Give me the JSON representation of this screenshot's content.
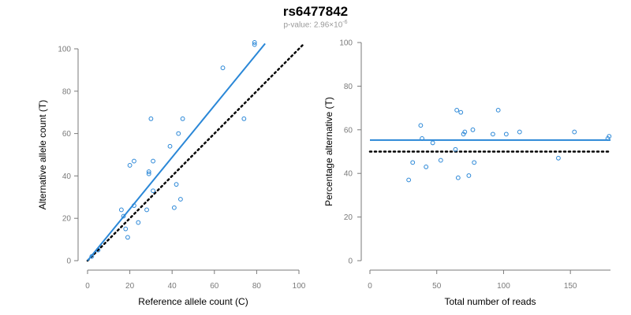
{
  "header": {
    "title": "rs6477842",
    "subtitle_prefix": "p-value: 2.96×10",
    "subtitle_exponent": "-6"
  },
  "colors": {
    "points": "#2a87d7",
    "fit_line": "#2a87d7",
    "reference_line": "#000000",
    "axis": "#7a7a7a"
  },
  "chart_data": [
    {
      "type": "scatter",
      "xlabel": "Reference allele count (C)",
      "ylabel": "Alternative allele count (T)",
      "xlim": [
        0,
        100
      ],
      "ylim": [
        0,
        100
      ],
      "xticks": [
        "0",
        "20",
        "40",
        "60",
        "80",
        "100"
      ],
      "yticks": [
        "0",
        "20",
        "40",
        "60",
        "80",
        "100"
      ],
      "points": [
        {
          "x": 2,
          "y": 2
        },
        {
          "x": 5,
          "y": 5
        },
        {
          "x": 16,
          "y": 24
        },
        {
          "x": 17,
          "y": 21
        },
        {
          "x": 18,
          "y": 15
        },
        {
          "x": 19,
          "y": 11
        },
        {
          "x": 20,
          "y": 45
        },
        {
          "x": 22,
          "y": 47
        },
        {
          "x": 22,
          "y": 26
        },
        {
          "x": 24,
          "y": 18
        },
        {
          "x": 28,
          "y": 24
        },
        {
          "x": 29,
          "y": 42
        },
        {
          "x": 29,
          "y": 41
        },
        {
          "x": 30,
          "y": 67
        },
        {
          "x": 31,
          "y": 33
        },
        {
          "x": 31,
          "y": 47
        },
        {
          "x": 39,
          "y": 54
        },
        {
          "x": 41,
          "y": 25
        },
        {
          "x": 42,
          "y": 36
        },
        {
          "x": 43,
          "y": 60
        },
        {
          "x": 44,
          "y": 29
        },
        {
          "x": 45,
          "y": 67
        },
        {
          "x": 64,
          "y": 91
        },
        {
          "x": 74,
          "y": 67
        },
        {
          "x": 79,
          "y": 103
        },
        {
          "x": 79,
          "y": 102
        }
      ],
      "fit_line": {
        "slope": 1.22,
        "intercept": 0,
        "x_range": [
          0,
          84
        ]
      },
      "reference_line": {
        "slope": 1.0,
        "intercept": 0,
        "x_range": [
          0,
          102
        ]
      }
    },
    {
      "type": "scatter",
      "xlabel": "Total number of reads",
      "ylabel": "Percentage alternative (T)",
      "xlim": [
        0,
        180
      ],
      "ylim": [
        0,
        100
      ],
      "xticks": [
        "0",
        "50",
        "100",
        "150"
      ],
      "yticks": [
        "0",
        "20",
        "40",
        "60",
        "80",
        "100"
      ],
      "points": [
        {
          "x": 29,
          "y": 37
        },
        {
          "x": 32,
          "y": 45
        },
        {
          "x": 38,
          "y": 62
        },
        {
          "x": 39,
          "y": 56
        },
        {
          "x": 42,
          "y": 43
        },
        {
          "x": 47,
          "y": 54
        },
        {
          "x": 53,
          "y": 46
        },
        {
          "x": 64,
          "y": 51
        },
        {
          "x": 65,
          "y": 69
        },
        {
          "x": 66,
          "y": 38
        },
        {
          "x": 68,
          "y": 68
        },
        {
          "x": 70,
          "y": 58
        },
        {
          "x": 71,
          "y": 59
        },
        {
          "x": 74,
          "y": 39
        },
        {
          "x": 77,
          "y": 60
        },
        {
          "x": 78,
          "y": 45
        },
        {
          "x": 92,
          "y": 58
        },
        {
          "x": 96,
          "y": 69
        },
        {
          "x": 102,
          "y": 58
        },
        {
          "x": 112,
          "y": 59
        },
        {
          "x": 141,
          "y": 47
        },
        {
          "x": 153,
          "y": 59
        },
        {
          "x": 178,
          "y": 56
        },
        {
          "x": 179,
          "y": 57
        }
      ],
      "fit_line": {
        "y": 55.3,
        "x_range": [
          0,
          180
        ]
      },
      "reference_line": {
        "y": 50,
        "x_range": [
          0,
          180
        ]
      }
    }
  ]
}
